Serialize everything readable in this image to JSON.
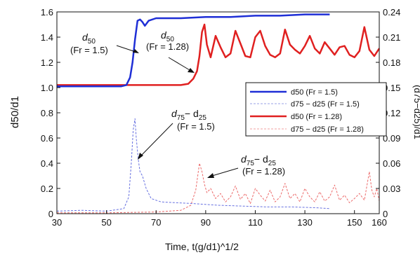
{
  "chart_data": {
    "type": "line",
    "xlabel": "Time, t(g/d1)^1/2",
    "ylabel_left": "d50/d1",
    "ylabel_right": "(d75−d25)/d1",
    "xlim": [
      30,
      160
    ],
    "ylim_left": [
      0,
      1.6
    ],
    "ylim_right": [
      0,
      0.24
    ],
    "x_ticks": [
      30,
      50,
      70,
      90,
      110,
      130,
      150,
      160
    ],
    "y_ticks_left": [
      "0",
      "0.2",
      "0.4",
      "0.6",
      "0.8",
      "1.0",
      "1.2",
      "1.4",
      "1.6"
    ],
    "y_ticks_right": [
      "0",
      "0.03",
      "0.06",
      "0.09",
      "0.12",
      "0.15",
      "0.18",
      "0.21",
      "0.24"
    ],
    "grid": false,
    "legend_position": "right",
    "legend": [
      {
        "label": "d50 (Fr = 1.5)",
        "color": "#1f2fd6",
        "style": "solid"
      },
      {
        "label": "d75 − d25 (Fr = 1.5)",
        "color": "#9aa0e6",
        "style": "dashed"
      },
      {
        "label": "d50 (Fr = 1.28)",
        "color": "#e02020",
        "style": "solid"
      },
      {
        "label": "d75 − d25 (Fr = 1.28)",
        "color": "#f0a0a0",
        "style": "dashed"
      }
    ],
    "series": [
      {
        "name": "d50 (Fr = 1.5)",
        "axis": "left",
        "color": "#1f2fd6",
        "style": "solid",
        "x": [
          30,
          56,
          58,
          59.5,
          60.5,
          61.5,
          62.5,
          63.5,
          64.5,
          65.5,
          67,
          70,
          74,
          80,
          90,
          100,
          110,
          120,
          130,
          140
        ],
        "y": [
          1.01,
          1.01,
          1.02,
          1.08,
          1.2,
          1.38,
          1.53,
          1.54,
          1.52,
          1.49,
          1.53,
          1.55,
          1.55,
          1.55,
          1.56,
          1.56,
          1.57,
          1.57,
          1.58,
          1.58
        ]
      },
      {
        "name": "d75 − d25 (Fr = 1.5)",
        "axis": "right",
        "color": "#6670e0",
        "style": "dashed",
        "x": [
          30,
          40,
          50,
          57,
          59,
          60,
          60.8,
          61.5,
          62,
          62.8,
          63.5,
          64.5,
          66,
          68,
          72,
          78,
          85,
          95,
          105,
          115,
          125,
          135,
          140
        ],
        "y": [
          0.003,
          0.004,
          0.003,
          0.006,
          0.02,
          0.06,
          0.1,
          0.113,
          0.09,
          0.065,
          0.05,
          0.045,
          0.03,
          0.018,
          0.014,
          0.013,
          0.012,
          0.01,
          0.009,
          0.008,
          0.008,
          0.007,
          0.006
        ]
      },
      {
        "name": "d50 (Fr = 1.28)",
        "axis": "left",
        "color": "#e02020",
        "style": "solid",
        "x": [
          30,
          80,
          83,
          85,
          86.5,
          87.5,
          88.5,
          89.5,
          90.5,
          92,
          94,
          96,
          98,
          100,
          102,
          104,
          106,
          108,
          110,
          112,
          114,
          116,
          118,
          120,
          122,
          124,
          126,
          128,
          130,
          132,
          134,
          136,
          138,
          140,
          142,
          144,
          146,
          148,
          150,
          152,
          154,
          156,
          158,
          160
        ],
        "y": [
          1.02,
          1.02,
          1.03,
          1.07,
          1.13,
          1.25,
          1.44,
          1.5,
          1.34,
          1.24,
          1.41,
          1.32,
          1.24,
          1.27,
          1.45,
          1.35,
          1.25,
          1.24,
          1.4,
          1.45,
          1.33,
          1.26,
          1.24,
          1.27,
          1.46,
          1.34,
          1.3,
          1.27,
          1.33,
          1.41,
          1.31,
          1.27,
          1.36,
          1.31,
          1.26,
          1.32,
          1.33,
          1.26,
          1.24,
          1.29,
          1.48,
          1.3,
          1.25,
          1.31
        ]
      },
      {
        "name": "d75 − d25 (Fr = 1.28)",
        "axis": "right",
        "color": "#ec6a6a",
        "style": "dashed",
        "x": [
          30,
          50,
          70,
          80,
          84,
          86,
          87.5,
          88.5,
          89.5,
          90.5,
          92,
          94,
          96,
          98,
          100,
          102,
          104,
          106,
          108,
          110,
          112,
          114,
          116,
          118,
          120,
          122,
          124,
          126,
          128,
          130,
          132,
          134,
          136,
          138,
          140,
          142,
          144,
          146,
          148,
          150,
          152,
          154,
          156,
          157,
          158,
          159,
          160
        ],
        "y": [
          0.001,
          0.001,
          0.002,
          0.004,
          0.01,
          0.028,
          0.06,
          0.05,
          0.035,
          0.025,
          0.03,
          0.018,
          0.024,
          0.014,
          0.02,
          0.033,
          0.017,
          0.024,
          0.012,
          0.03,
          0.022,
          0.015,
          0.028,
          0.014,
          0.02,
          0.036,
          0.018,
          0.024,
          0.014,
          0.03,
          0.02,
          0.014,
          0.026,
          0.015,
          0.02,
          0.034,
          0.016,
          0.022,
          0.013,
          0.018,
          0.024,
          0.016,
          0.05,
          0.028,
          0.02,
          0.03,
          0.015
        ]
      }
    ],
    "annotations": [
      {
        "text_sym": "d",
        "text_sub": "50",
        "line2": "(Fr = 1.5)"
      },
      {
        "text_sym": "d",
        "text_sub": "50",
        "line2": "(Fr = 1.28)"
      },
      {
        "text_sym": "d",
        "text_sub": "75",
        "text_mid": "− d",
        "text_sub2": "25",
        "line2": "(Fr = 1.5)"
      },
      {
        "text_sym": "d",
        "text_sub": "75",
        "text_mid": "− d",
        "text_sub2": "25",
        "line2": "(Fr = 1.28)"
      }
    ]
  }
}
